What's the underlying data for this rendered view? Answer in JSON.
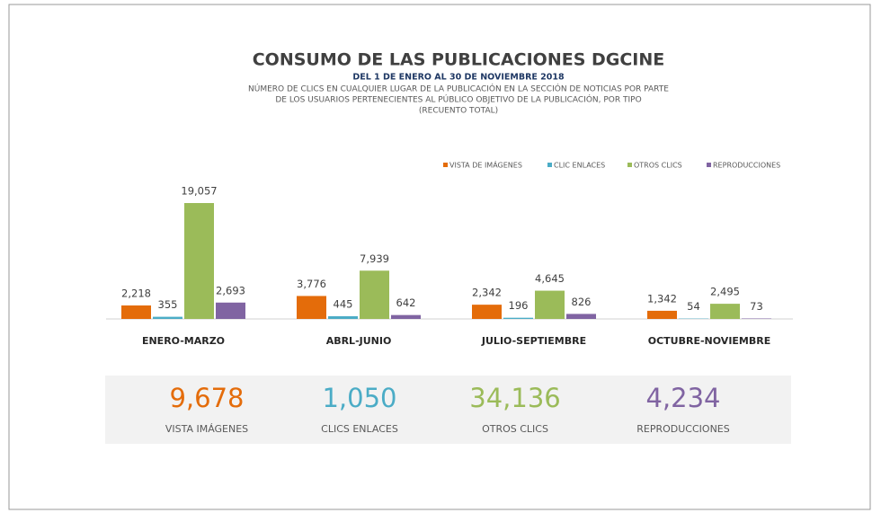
{
  "chart_data": {
    "type": "bar",
    "title": "CONSUMO DE LAS PUBLICACIONES DGCINE",
    "subtitle": "DEL 1 DE ENERO AL 30 DE NOVIEMBRE 2018",
    "description": [
      "NÚMERO DE CLICS EN CUALQUIER LUGAR DE LA PUBLICACIÓN EN LA SECCIÓN DE NOTICIAS POR PARTE",
      "DE LOS USUARIOS PERTENECIENTES AL PÚBLICO OBJETIVO DE LA PUBLICACIÓN, POR TIPO",
      "(RECUENTO TOTAL)"
    ],
    "categories": [
      "ENERO-MARZO",
      "ABRL-JUNIO",
      "JULIO-SEPTIEMBRE",
      "OCTUBRE-NOVIEMBRE"
    ],
    "series": [
      {
        "name": "VISTA DE IMÁGENES",
        "color": "#e46c0a",
        "values": [
          2218,
          3776,
          2342,
          1342
        ],
        "value_labels": [
          "2,218",
          "3,776",
          "2,342",
          "1,342"
        ]
      },
      {
        "name": "CLIC ENLACES",
        "color": "#4bacc6",
        "values": [
          355,
          445,
          196,
          54
        ],
        "value_labels": [
          "355",
          "445",
          "196",
          "54"
        ]
      },
      {
        "name": "OTROS CLICS",
        "color": "#9bbb59",
        "values": [
          19057,
          7939,
          4645,
          2495
        ],
        "value_labels": [
          "19,057",
          "7,939",
          "4,645",
          "2,495"
        ]
      },
      {
        "name": "REPRODUCCIONES",
        "color": "#8064a2",
        "values": [
          2693,
          642,
          826,
          73
        ],
        "value_labels": [
          "2,693",
          "642",
          "826",
          "73"
        ]
      }
    ],
    "legend": "top-right",
    "summary": [
      {
        "value": "9,678",
        "label": "VISTA IMÁGENES",
        "color": "#e46c0a"
      },
      {
        "value": "1,050",
        "label": "CLICS ENLACES",
        "color": "#4bacc6"
      },
      {
        "value": "34,136",
        "label": "OTROS CLICS",
        "color": "#9bbb59"
      },
      {
        "value": "4,234",
        "label": "REPRODUCCIONES",
        "color": "#8064a2"
      }
    ]
  }
}
